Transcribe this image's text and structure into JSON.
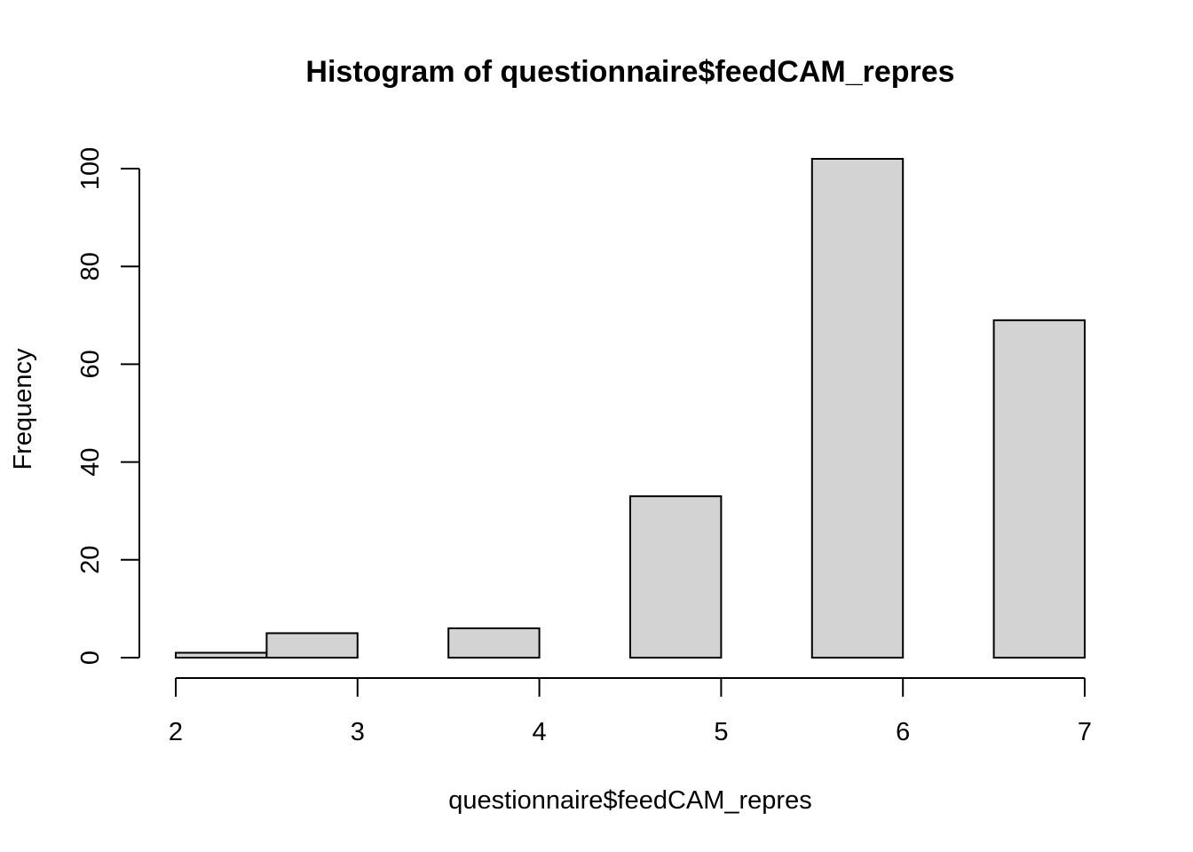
{
  "chart_data": {
    "type": "bar",
    "title": "Histogram of questionnaire$feedCAM_repres",
    "xlabel": "questionnaire$feedCAM_repres",
    "ylabel": "Frequency",
    "bins": [
      {
        "from": 2.0,
        "to": 2.5,
        "value": 1
      },
      {
        "from": 2.5,
        "to": 3.0,
        "value": 5
      },
      {
        "from": 3.0,
        "to": 3.5,
        "value": 0
      },
      {
        "from": 3.5,
        "to": 4.0,
        "value": 6
      },
      {
        "from": 4.0,
        "to": 4.5,
        "value": 0
      },
      {
        "from": 4.5,
        "to": 5.0,
        "value": 33
      },
      {
        "from": 5.0,
        "to": 5.5,
        "value": 0
      },
      {
        "from": 5.5,
        "to": 6.0,
        "value": 102
      },
      {
        "from": 6.0,
        "to": 6.5,
        "value": 0
      },
      {
        "from": 6.5,
        "to": 7.0,
        "value": 69
      }
    ],
    "x_ticks": [
      "2",
      "3",
      "4",
      "5",
      "6",
      "7"
    ],
    "y_ticks": [
      "0",
      "20",
      "40",
      "60",
      "80",
      "100"
    ],
    "xlim": [
      2,
      7
    ],
    "ylim": [
      0,
      100
    ],
    "bar_color": "#d3d3d3",
    "grid": false
  }
}
